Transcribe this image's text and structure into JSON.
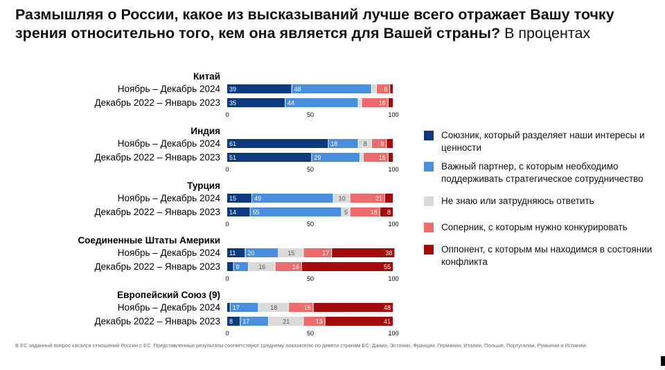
{
  "chart_data": {
    "type": "bar",
    "orientation": "horizontal",
    "stacked": true,
    "title": "Размышляя о России, какое из высказываний лучше всего отражает Вашу точку зрения относительно того, кем она является для Вашей страны?",
    "subtitle": "В процентах",
    "xlim": [
      0,
      100
    ],
    "xticks": [
      "0",
      "50",
      "100"
    ],
    "legend_placement": "right",
    "series": [
      {
        "name": "Союзник, который разделяет наши интересы и ценности",
        "color": "#0b3a7e"
      },
      {
        "name": "Важный партнер, с которым необходимо поддерживать стратегическое сотрудничество",
        "color": "#4a8ee0"
      },
      {
        "name": "Не знаю или затрудняюсь ответить",
        "color": "#dadada"
      },
      {
        "name": "Соперник, с которым нужно конкурировать",
        "color": "#ef6b6b"
      },
      {
        "name": "Оппонент, с которым мы находимся в состоянии конфликта",
        "color": "#a50a0a"
      }
    ],
    "groups": [
      {
        "name": "Китай",
        "rows": [
          {
            "label": "Ноябрь – Декабрь 2024",
            "values": [
              39,
              48,
              3,
              8,
              2
            ],
            "labels": [
              "39",
              "48",
              "",
              "8",
              ""
            ]
          },
          {
            "label": "Декабрь 2022 – Январь 2023",
            "values": [
              35,
              44,
              2,
              16,
              3
            ],
            "labels": [
              "35",
              "44",
              "",
              "16",
              ""
            ]
          }
        ]
      },
      {
        "name": "Индия",
        "rows": [
          {
            "label": "Ноябрь – Декабрь 2024",
            "values": [
              61,
              18,
              8,
              9,
              4
            ],
            "labels": [
              "61",
              "18",
              "8",
              "9",
              ""
            ]
          },
          {
            "label": "Декабрь 2022 – Январь 2023",
            "values": [
              51,
              29,
              2,
              15,
              3
            ],
            "labels": [
              "51",
              "29",
              "",
              "15",
              ""
            ]
          }
        ]
      },
      {
        "name": "Турция",
        "rows": [
          {
            "label": "Ноябрь – Декабрь 2024",
            "values": [
              15,
              49,
              10,
              21,
              5
            ],
            "labels": [
              "15",
              "49",
              "10",
              "21",
              ""
            ]
          },
          {
            "label": "Декабрь 2022 – Январь 2023",
            "values": [
              14,
              55,
              5,
              18,
              8
            ],
            "labels": [
              "14",
              "55",
              "5",
              "18",
              "8"
            ]
          }
        ]
      },
      {
        "name": "Соединенные Штаты Америки",
        "rows": [
          {
            "label": "Ноябрь – Декабрь 2024",
            "values": [
              11,
              20,
              15,
              17,
              38
            ],
            "labels": [
              "11",
              "20",
              "15",
              "17",
              "38"
            ]
          },
          {
            "label": "Декабрь 2022 – Январь 2023",
            "values": [
              4,
              9,
              16,
              16,
              55
            ],
            "labels": [
              "",
              "9",
              "16",
              "16",
              "55"
            ]
          }
        ]
      },
      {
        "name": "Европейский Союз (9)",
        "rows": [
          {
            "label": "Ноябрь – Декабрь 2024",
            "values": [
              2,
              17,
              18,
              15,
              48
            ],
            "labels": [
              "",
              "17",
              "18",
              "15",
              "48"
            ]
          },
          {
            "label": "Декабрь 2022 – Январь 2023",
            "values": [
              8,
              17,
              21,
              13,
              41
            ],
            "labels": [
              "8",
              "17",
              "21",
              "13",
              "41"
            ]
          }
        ]
      }
    ]
  },
  "footnote": "В ЕС заданный вопрос касался отношений России с ЕС. Представленные результаты соответствуют среднему показателю по девяти странам ЕС: Дании, Эстонии, Франции, Германии, Италии, Польше, Португалии, Румынии и Испании."
}
